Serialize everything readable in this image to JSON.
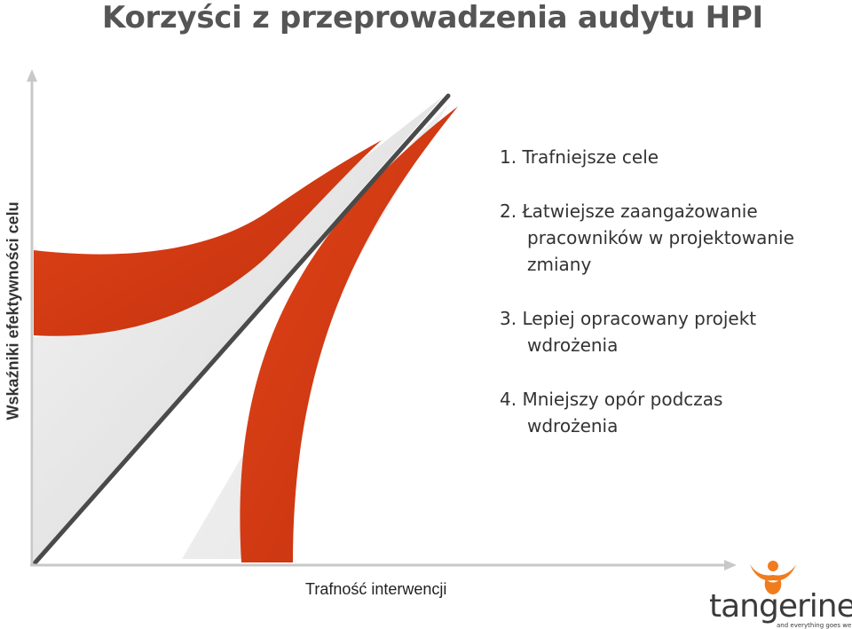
{
  "title": "Korzyści z przeprowadzenia audytu HPI",
  "y_axis_label": "Wskaźniki efektywności celu",
  "x_axis_label": "Trafność interwencji",
  "benefits": [
    {
      "lines": [
        "1. Trafniejsze cele"
      ]
    },
    {
      "lines": [
        "2. Łatwiejsze zaangażowanie",
        "pracowników w projektowanie",
        "zmiany"
      ]
    },
    {
      "lines": [
        "3. Lepiej opracowany projekt",
        "wdrożenia"
      ]
    },
    {
      "lines": [
        "4. Mniejszy opór podczas",
        "wdrożenia"
      ]
    }
  ],
  "logo": {
    "wordmark": "tangerine.",
    "tagline": "and everything goes well"
  },
  "colors": {
    "accent_red": "#d03812",
    "logo_orange": "#f07c1e",
    "axis": "#c8c8c8",
    "diagonal": "#4a4a4a",
    "shade": "#e6e6e6"
  }
}
